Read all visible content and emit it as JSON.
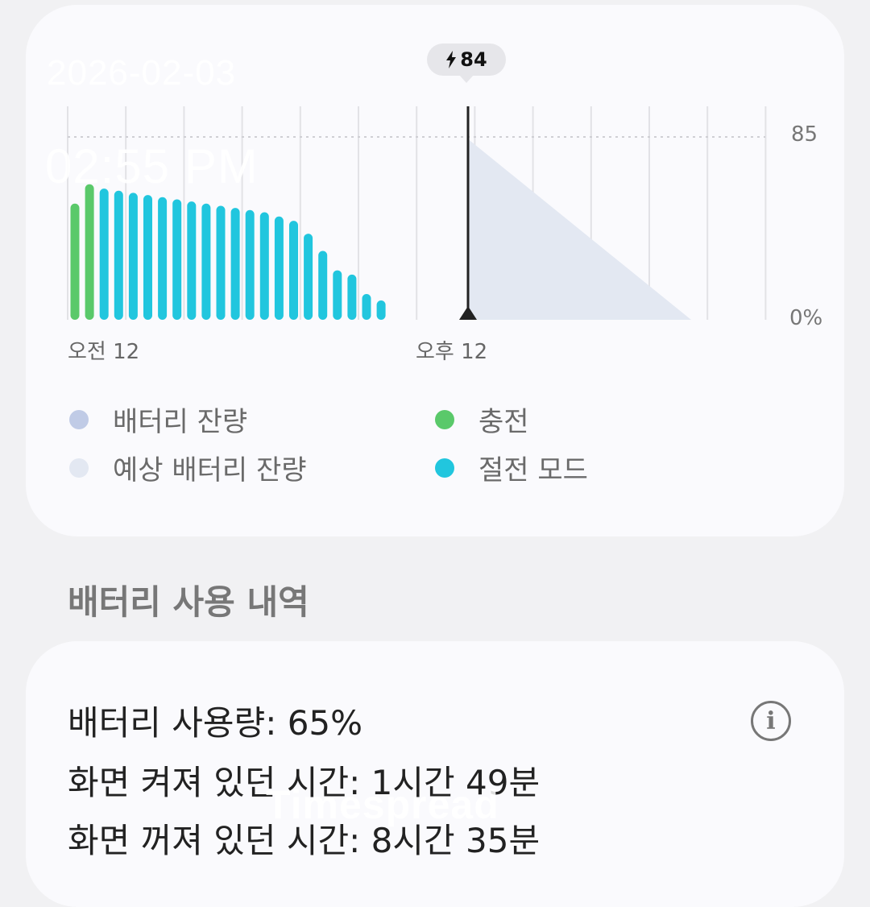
{
  "overlay": {
    "date": "2026-02-03",
    "time": "02:55 PM",
    "watermark": "Timespread"
  },
  "chart_card": {
    "badge_value": "84",
    "badge_icon": "lightning-icon",
    "y_max_label": "85",
    "y_min_label": "0%",
    "x_labels": [
      "오전 12",
      "오후 12"
    ],
    "legend": [
      {
        "label": "배터리 잔량",
        "color": "#c0cbe6"
      },
      {
        "label": "예상 배터리 잔량",
        "color": "#e3e8f2"
      },
      {
        "label": "충전",
        "color": "#5ac96a"
      },
      {
        "label": "절전 모드",
        "color": "#21c6de"
      }
    ]
  },
  "chart_data": {
    "type": "bar",
    "ylim": [
      0,
      85
    ],
    "ylabel_top": "85",
    "ylabel_bottom": "0%",
    "x_tick_labels": [
      "오전 12",
      "오후 12"
    ],
    "bars": [
      {
        "value": 54,
        "mode": "charging"
      },
      {
        "value": 63,
        "mode": "charging"
      },
      {
        "value": 61,
        "mode": "power_saving"
      },
      {
        "value": 60,
        "mode": "power_saving"
      },
      {
        "value": 59,
        "mode": "power_saving"
      },
      {
        "value": 58,
        "mode": "power_saving"
      },
      {
        "value": 57,
        "mode": "power_saving"
      },
      {
        "value": 56,
        "mode": "power_saving"
      },
      {
        "value": 55,
        "mode": "power_saving"
      },
      {
        "value": 54,
        "mode": "power_saving"
      },
      {
        "value": 53,
        "mode": "power_saving"
      },
      {
        "value": 52,
        "mode": "power_saving"
      },
      {
        "value": 51,
        "mode": "power_saving"
      },
      {
        "value": 50,
        "mode": "power_saving"
      },
      {
        "value": 48,
        "mode": "power_saving"
      },
      {
        "value": 46,
        "mode": "power_saving"
      },
      {
        "value": 40,
        "mode": "power_saving"
      },
      {
        "value": 32,
        "mode": "power_saving"
      },
      {
        "value": 23,
        "mode": "power_saving"
      },
      {
        "value": 21,
        "mode": "power_saving"
      },
      {
        "value": 12,
        "mode": "power_saving"
      },
      {
        "value": 9,
        "mode": "power_saving"
      }
    ],
    "current_marker_value": 84,
    "projection": {
      "start_value": 84,
      "end_value": 0
    },
    "colors": {
      "charging": "#5ac96a",
      "power_saving": "#21c6de",
      "projection": "#e3e8f2",
      "marker": "#222222"
    },
    "legend": [
      "배터리 잔량",
      "예상 배터리 잔량",
      "충전",
      "절전 모드"
    ]
  },
  "usage_section": {
    "title": "배터리 사용 내역",
    "lines": [
      "배터리 사용량: 65%",
      "화면 켜져 있던 시간: 1시간 49분",
      "화면 꺼져 있던 시간: 8시간 35분"
    ],
    "info_icon": "i"
  }
}
